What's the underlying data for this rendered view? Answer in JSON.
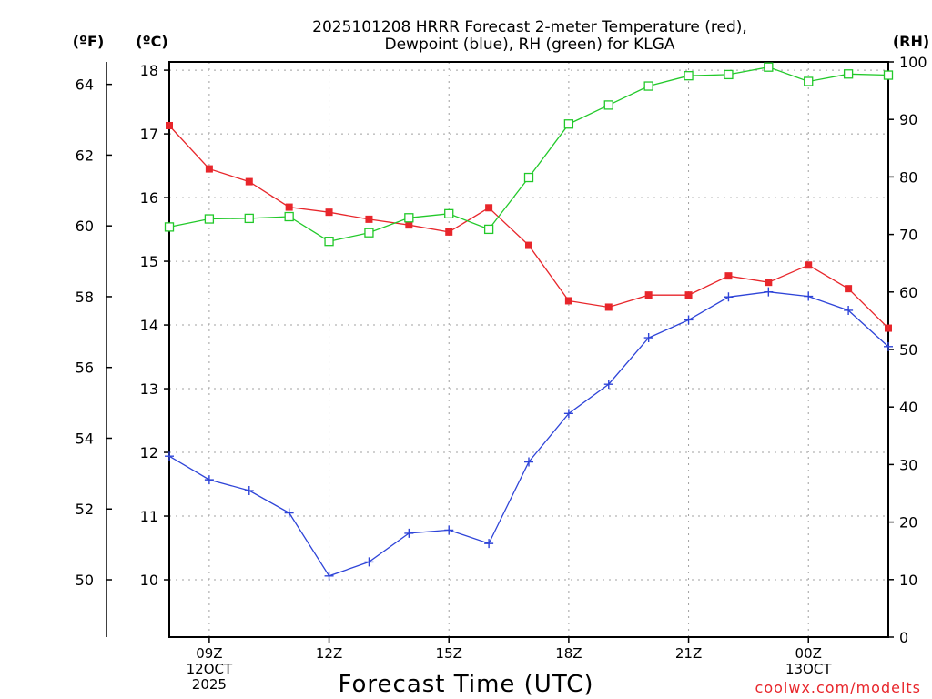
{
  "chart_data": {
    "type": "line",
    "title_line1": "2025101208 HRRR Forecast 2-meter Temperature (red),",
    "title_line2": "Dewpoint (blue), RH (green) for KLGA",
    "left_unit_f": "(ºF)",
    "left_unit_c": "(ºC)",
    "right_unit": "(RH)",
    "xlabel": "Forecast Time (UTC)",
    "credit": "coolwx.com/modelts",
    "x_hours": [
      8,
      9,
      10,
      11,
      12,
      13,
      14,
      15,
      16,
      17,
      18,
      19,
      20,
      21,
      22,
      23,
      24,
      25,
      26
    ],
    "x_ticks": [
      {
        "hour": 9,
        "lines": [
          "09Z",
          "12OCT",
          "2025"
        ]
      },
      {
        "hour": 12,
        "lines": [
          "12Z"
        ]
      },
      {
        "hour": 15,
        "lines": [
          "15Z"
        ]
      },
      {
        "hour": 18,
        "lines": [
          "18Z"
        ]
      },
      {
        "hour": 21,
        "lines": [
          "21Z"
        ]
      },
      {
        "hour": 24,
        "lines": [
          "00Z",
          "13OCT"
        ]
      }
    ],
    "x_range": [
      8,
      26
    ],
    "c_range": [
      9.1,
      18.13
    ],
    "c_ticks": [
      10,
      11,
      12,
      13,
      14,
      15,
      16,
      17,
      18
    ],
    "f_ticks": [
      50,
      52,
      54,
      56,
      58,
      60,
      62,
      64
    ],
    "rh_range": [
      0,
      100
    ],
    "rh_ticks": [
      0,
      10,
      20,
      30,
      40,
      50,
      60,
      70,
      80,
      90,
      100
    ],
    "grid": true,
    "series": [
      {
        "key": "temperature",
        "axis": "c",
        "color": "#e8262b",
        "marker": "filled-square",
        "values": [
          17.13,
          16.45,
          16.25,
          15.85,
          15.77,
          15.66,
          15.57,
          15.46,
          15.84,
          15.25,
          14.38,
          14.28,
          14.47,
          14.47,
          14.77,
          14.67,
          14.94,
          14.57,
          13.95
        ]
      },
      {
        "key": "dewpoint",
        "axis": "c",
        "color": "#2e44d8",
        "marker": "plus",
        "values": [
          11.94,
          11.57,
          11.4,
          11.05,
          10.06,
          10.28,
          10.73,
          10.78,
          10.57,
          11.85,
          12.61,
          13.07,
          13.8,
          14.08,
          14.44,
          14.52,
          14.45,
          14.23,
          13.66
        ]
      },
      {
        "key": "rh",
        "axis": "rh",
        "color": "#22c92a",
        "marker": "open-square",
        "values": [
          71.3,
          72.7,
          72.8,
          73.1,
          68.8,
          70.3,
          72.9,
          73.6,
          70.9,
          79.9,
          89.2,
          92.5,
          95.8,
          97.6,
          97.8,
          99.1,
          96.6,
          97.9,
          97.7
        ]
      }
    ]
  }
}
